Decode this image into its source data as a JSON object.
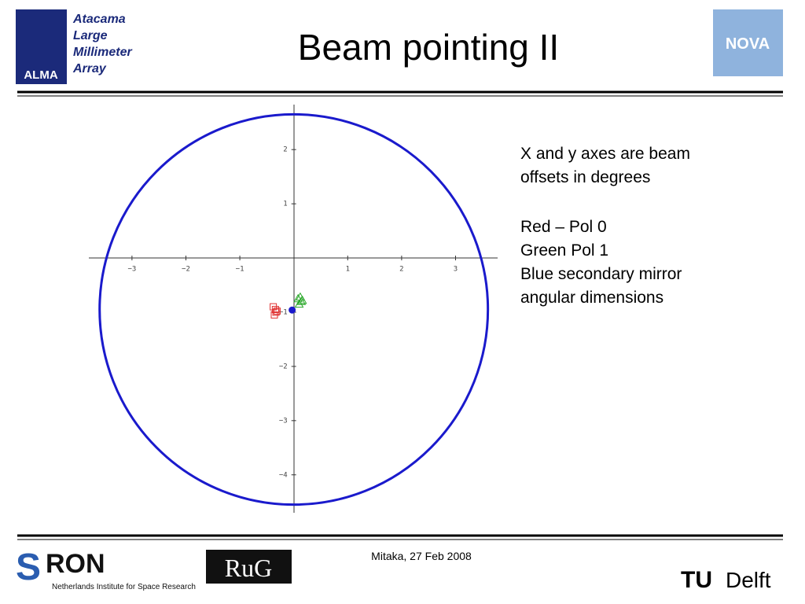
{
  "header": {
    "title": "Beam pointing II",
    "alma_logo": {
      "lines": [
        "Atacama",
        "Large",
        "Millimeter",
        "Array"
      ],
      "badge": "ALMA"
    },
    "nova_logo": "NOVA"
  },
  "notes": [
    "X and y axes are beam",
    "offsets in degrees",
    "Red – Pol 0",
    "Green Pol 1",
    "Blue secondary mirror",
    "angular dimensions"
  ],
  "footer": {
    "date": "Mitaka, 27 Feb 2008",
    "sron": {
      "initial": "S",
      "rest": "RON",
      "caption": "Netherlands Institute for Space Research"
    },
    "rug": "RuG",
    "tudelft": {
      "tu": "TU",
      "delft": "Delft"
    }
  },
  "chart_data": {
    "type": "scatter",
    "xlim": [
      -3.8,
      3.78
    ],
    "ylim": [
      -4.7,
      2.83
    ],
    "xticks": [
      {
        "value": -3,
        "label": "−3"
      },
      {
        "value": -2,
        "label": "−2"
      },
      {
        "value": -1,
        "label": "−1"
      },
      1,
      2,
      3
    ],
    "yticks": [
      2,
      1,
      {
        "value": -1,
        "label": "−1"
      },
      {
        "value": -2,
        "label": "−2"
      },
      {
        "value": -3,
        "label": "−3"
      },
      {
        "value": -4,
        "label": "−4"
      }
    ],
    "circle": {
      "center_x": 0,
      "center_y": -0.95,
      "radius": 3.6,
      "color": "#1a1acc"
    },
    "series": [
      {
        "color": "#e03030",
        "marker": "square",
        "x": [
          -0.38,
          -0.34,
          -0.33,
          -0.36,
          -0.31
        ],
        "y": [
          -0.9,
          -0.95,
          -1.0,
          -1.05,
          -0.98
        ]
      },
      {
        "color": "#2aa82a",
        "marker": "triangle",
        "x": [
          0.08,
          0.12,
          0.14,
          0.1,
          0.16
        ],
        "y": [
          -0.75,
          -0.72,
          -0.8,
          -0.85,
          -0.78
        ]
      },
      {
        "color": "#1a1acc",
        "marker": "dot",
        "x": [
          -0.03
        ],
        "y": [
          -0.96
        ]
      }
    ]
  }
}
